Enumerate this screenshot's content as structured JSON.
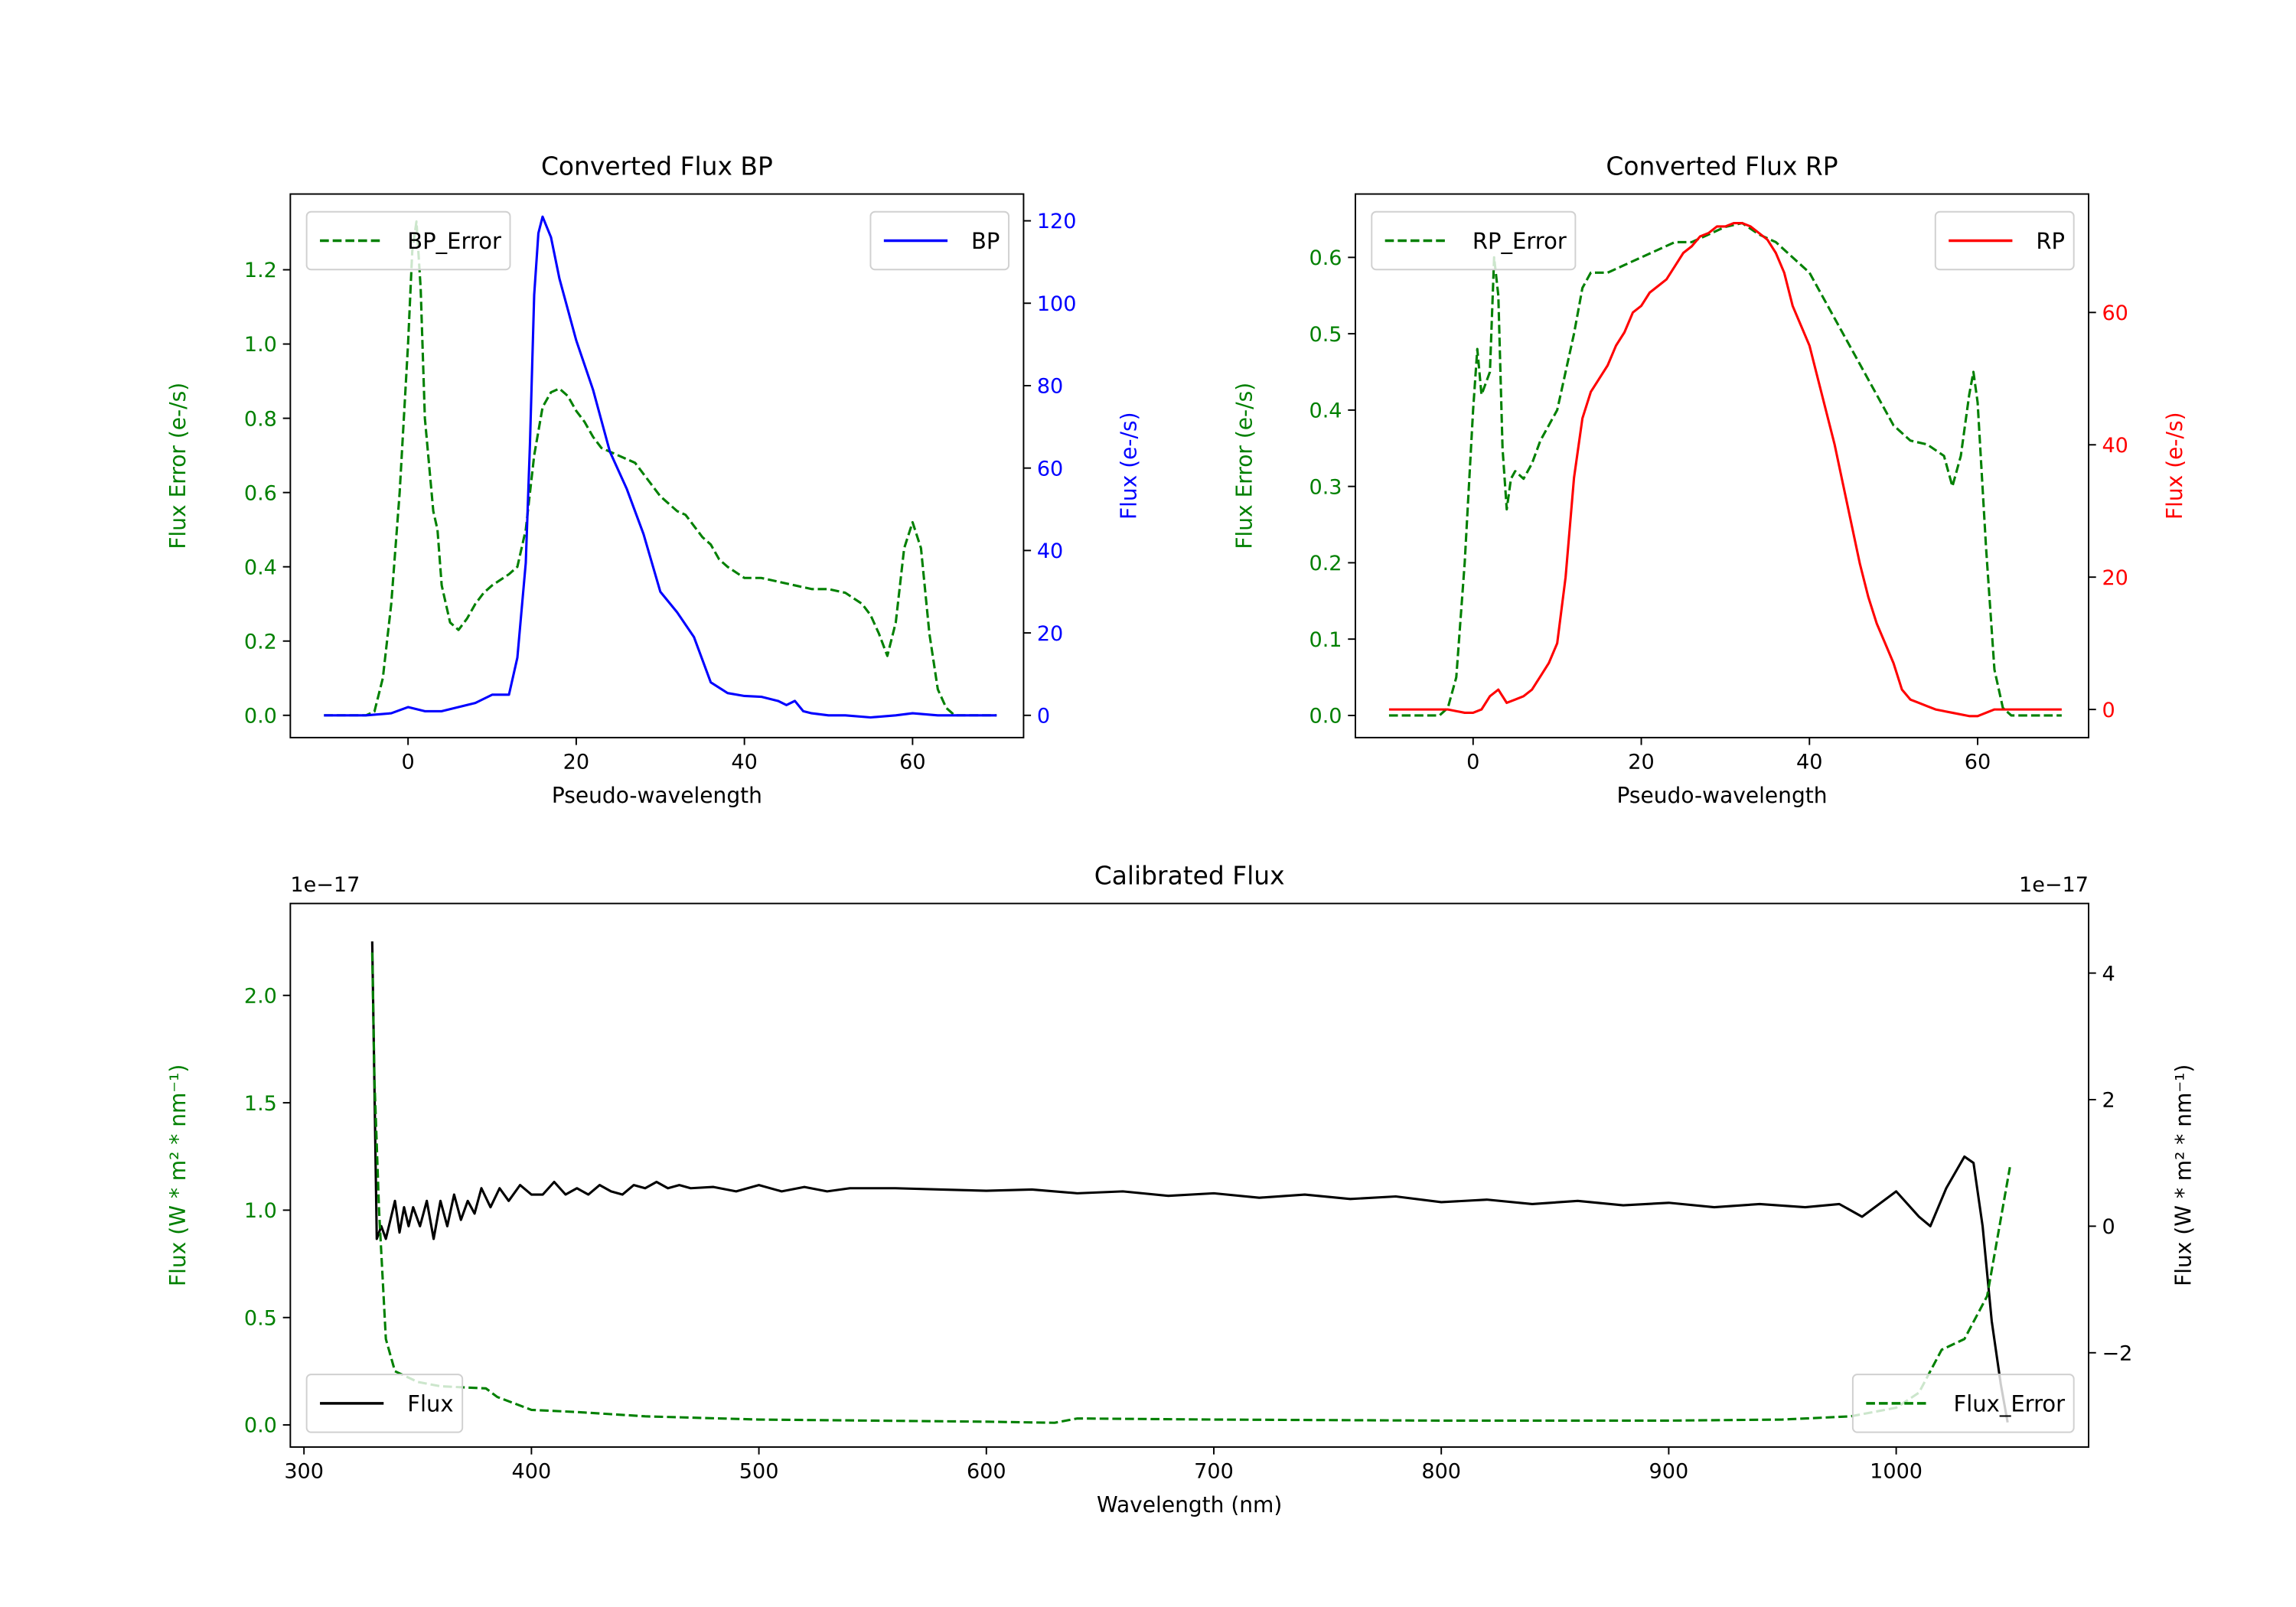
{
  "chart_data": [
    {
      "type": "line",
      "title": "Converted Flux BP",
      "xlabel": "Pseudo-wavelength",
      "ylabel_left": "Flux Error (e-/s)",
      "ylabel_right": "Flux (e-/s)",
      "left_color": "#008000",
      "right_color": "#0000ff",
      "xlim": [
        -14,
        73.2
      ],
      "ylim_left": [
        -0.06,
        1.404
      ],
      "ylim_right": [
        -5.4,
        126.5
      ],
      "xticks": [
        {
          "v": 0,
          "label": "0"
        },
        {
          "v": 20,
          "label": "20"
        },
        {
          "v": 40,
          "label": "40"
        },
        {
          "v": 60,
          "label": "60"
        }
      ],
      "yticks_left": [
        {
          "v": 0,
          "label": "0.0"
        },
        {
          "v": 0.2,
          "label": "0.2"
        },
        {
          "v": 0.4,
          "label": "0.4"
        },
        {
          "v": 0.6,
          "label": "0.6"
        },
        {
          "v": 0.8,
          "label": "0.8"
        },
        {
          "v": 1.0,
          "label": "1.0"
        },
        {
          "v": 1.2,
          "label": "1.2"
        }
      ],
      "yticks_right": [
        {
          "v": 0,
          "label": "0"
        },
        {
          "v": 20,
          "label": "20"
        },
        {
          "v": 40,
          "label": "40"
        },
        {
          "v": 60,
          "label": "60"
        },
        {
          "v": 80,
          "label": "80"
        },
        {
          "v": 100,
          "label": "100"
        },
        {
          "v": 120,
          "label": "120"
        }
      ],
      "offset_left": "",
      "offset_right": "",
      "series": [
        {
          "name": "BP_Error",
          "axis": "left",
          "color": "#008000",
          "style": "dashed",
          "legend": "upper left",
          "x": [
            -10,
            -5,
            -4,
            -3,
            -2,
            -1,
            0,
            0.5,
            1,
            1.5,
            2,
            3,
            3.5,
            4,
            5,
            6,
            7,
            8,
            9,
            10,
            12,
            13,
            14,
            15,
            16,
            17,
            18,
            19,
            20,
            21,
            22,
            23,
            24,
            25,
            26,
            27,
            28,
            29,
            30,
            31,
            32,
            33,
            34,
            35,
            36,
            37,
            38,
            40,
            42,
            44,
            46,
            48,
            50,
            52,
            54,
            55,
            56,
            57,
            58,
            59,
            60,
            61,
            62,
            63,
            64,
            65,
            70
          ],
          "y": [
            0,
            0,
            0.01,
            0.1,
            0.3,
            0.6,
            1.0,
            1.25,
            1.33,
            1.15,
            0.8,
            0.55,
            0.5,
            0.35,
            0.25,
            0.23,
            0.26,
            0.3,
            0.33,
            0.35,
            0.38,
            0.4,
            0.5,
            0.7,
            0.83,
            0.87,
            0.88,
            0.86,
            0.82,
            0.79,
            0.75,
            0.72,
            0.71,
            0.7,
            0.69,
            0.68,
            0.65,
            0.62,
            0.59,
            0.57,
            0.55,
            0.54,
            0.51,
            0.48,
            0.46,
            0.42,
            0.4,
            0.37,
            0.37,
            0.36,
            0.35,
            0.34,
            0.34,
            0.33,
            0.3,
            0.27,
            0.22,
            0.16,
            0.25,
            0.45,
            0.52,
            0.45,
            0.22,
            0.07,
            0.02,
            0,
            0
          ]
        },
        {
          "name": "BP",
          "axis": "right",
          "color": "#0000ff",
          "style": "solid",
          "legend": "upper right",
          "x": [
            -10,
            -5,
            -2,
            0,
            2,
            4,
            6,
            8,
            10,
            12,
            13,
            14,
            14.5,
            15,
            15.5,
            16,
            17,
            18,
            20,
            22,
            24,
            26,
            28,
            30,
            32,
            34,
            36,
            38,
            40,
            42,
            44,
            45,
            46,
            47,
            48,
            50,
            52,
            55,
            58,
            60,
            63,
            66,
            70
          ],
          "y": [
            0,
            0,
            0.5,
            2,
            1,
            1,
            2,
            3,
            5,
            5,
            14,
            37,
            66,
            102,
            117,
            121,
            116,
            106,
            91,
            79,
            64,
            55,
            44,
            30,
            25,
            19,
            8,
            5.4,
            4.7,
            4.5,
            3.5,
            2.5,
            3.5,
            1,
            0.5,
            0,
            0,
            -0.5,
            0,
            0.5,
            0,
            0,
            0
          ]
        }
      ]
    },
    {
      "type": "line",
      "title": "Converted Flux RP",
      "xlabel": "Pseudo-wavelength",
      "ylabel_left": "Flux Error (e-/s)",
      "ylabel_right": "Flux (e-/s)",
      "left_color": "#008000",
      "right_color": "#ff0000",
      "xlim": [
        -14,
        73.2
      ],
      "ylim_left": [
        -0.029,
        0.683
      ],
      "ylim_right": [
        -4.25,
        77.9
      ],
      "xticks": [
        {
          "v": 0,
          "label": "0"
        },
        {
          "v": 20,
          "label": "20"
        },
        {
          "v": 40,
          "label": "40"
        },
        {
          "v": 60,
          "label": "60"
        }
      ],
      "yticks_left": [
        {
          "v": 0,
          "label": "0.0"
        },
        {
          "v": 0.1,
          "label": "0.1"
        },
        {
          "v": 0.2,
          "label": "0.2"
        },
        {
          "v": 0.3,
          "label": "0.3"
        },
        {
          "v": 0.4,
          "label": "0.4"
        },
        {
          "v": 0.5,
          "label": "0.5"
        },
        {
          "v": 0.6,
          "label": "0.6"
        }
      ],
      "yticks_right": [
        {
          "v": 0,
          "label": "0"
        },
        {
          "v": 20,
          "label": "20"
        },
        {
          "v": 40,
          "label": "40"
        },
        {
          "v": 60,
          "label": "60"
        }
      ],
      "offset_left": "",
      "offset_right": "",
      "series": [
        {
          "name": "RP_Error",
          "axis": "left",
          "color": "#008000",
          "style": "dashed",
          "legend": "upper left",
          "x": [
            -10,
            -4,
            -3,
            -2,
            -1,
            0,
            0.5,
            1,
            2,
            2.5,
            3,
            3.5,
            4,
            4.5,
            5,
            6,
            7,
            8,
            10,
            12,
            13,
            14,
            16,
            18,
            20,
            22,
            24,
            26,
            28,
            30,
            32,
            34,
            36,
            38,
            40,
            42,
            44,
            46,
            48,
            50,
            52,
            54,
            56,
            57,
            58,
            59,
            59.5,
            60,
            61,
            62,
            63,
            64,
            70
          ],
          "y": [
            0,
            0,
            0.01,
            0.05,
            0.2,
            0.4,
            0.48,
            0.42,
            0.45,
            0.6,
            0.55,
            0.35,
            0.27,
            0.31,
            0.32,
            0.31,
            0.33,
            0.36,
            0.4,
            0.5,
            0.56,
            0.58,
            0.58,
            0.59,
            0.6,
            0.61,
            0.62,
            0.62,
            0.63,
            0.64,
            0.645,
            0.63,
            0.62,
            0.6,
            0.58,
            0.54,
            0.5,
            0.46,
            0.42,
            0.38,
            0.36,
            0.355,
            0.34,
            0.3,
            0.34,
            0.42,
            0.45,
            0.41,
            0.22,
            0.06,
            0.01,
            0,
            0
          ]
        },
        {
          "name": "RP",
          "axis": "right",
          "color": "#ff0000",
          "style": "solid",
          "legend": "upper right",
          "x": [
            -10,
            -3,
            -1,
            0,
            1,
            2,
            3,
            4,
            5,
            6,
            7,
            8,
            9,
            10,
            11,
            12,
            13,
            14,
            15,
            16,
            17,
            18,
            19,
            20,
            21,
            22,
            23,
            24,
            25,
            26,
            27,
            28,
            29,
            30,
            31,
            32,
            33,
            34,
            35,
            36,
            37,
            38,
            39,
            40,
            41,
            42,
            43,
            44,
            45,
            46,
            47,
            48,
            49,
            50,
            51,
            52,
            53,
            54,
            55,
            57,
            59,
            60,
            62,
            65,
            70
          ],
          "y": [
            0,
            0,
            -0.5,
            -0.5,
            0,
            2,
            3,
            1,
            1.5,
            2,
            3,
            5,
            7,
            10,
            20,
            35,
            44,
            48,
            50,
            52,
            55,
            57,
            60,
            61,
            63,
            64,
            65,
            67,
            69,
            70,
            71.5,
            72,
            73,
            73,
            73.5,
            73.5,
            73,
            72,
            71,
            69,
            66,
            61,
            58,
            55,
            50,
            45,
            40,
            34,
            28,
            22,
            17,
            13,
            10,
            7,
            3,
            1.5,
            1,
            0.5,
            0,
            -0.5,
            -1,
            -1,
            0,
            0,
            0
          ]
        }
      ]
    },
    {
      "type": "line",
      "title": "Calibrated Flux",
      "xlabel": "Wavelength (nm)",
      "ylabel_left": "Flux (W * m² * nm⁻¹)",
      "ylabel_right": "Flux (W * m² * nm⁻¹)",
      "left_color": "#008000",
      "right_color": "#000000",
      "xlim": [
        294,
        1084.6
      ],
      "ylim_left": [
        -0.103,
        2.428
      ],
      "ylim_right": [
        -3.49,
        5.1
      ],
      "xticks": [
        {
          "v": 300,
          "label": "300"
        },
        {
          "v": 400,
          "label": "400"
        },
        {
          "v": 500,
          "label": "500"
        },
        {
          "v": 600,
          "label": "600"
        },
        {
          "v": 700,
          "label": "700"
        },
        {
          "v": 800,
          "label": "800"
        },
        {
          "v": 900,
          "label": "900"
        },
        {
          "v": 1000,
          "label": "1000"
        }
      ],
      "yticks_left": [
        {
          "v": 0,
          "label": "0.0"
        },
        {
          "v": 0.5,
          "label": "0.5"
        },
        {
          "v": 1.0,
          "label": "1.0"
        },
        {
          "v": 1.5,
          "label": "1.5"
        },
        {
          "v": 2.0,
          "label": "2.0"
        }
      ],
      "yticks_right": [
        {
          "v": -2,
          "label": "−2"
        },
        {
          "v": 0,
          "label": "0"
        },
        {
          "v": 2,
          "label": "2"
        },
        {
          "v": 4,
          "label": "4"
        }
      ],
      "offset_left": "1e−17",
      "offset_right": "1e−17",
      "series": [
        {
          "name": "Flux",
          "axis": "right",
          "color": "#000000",
          "style": "solid",
          "legend": "lower left",
          "x": [
            330,
            332,
            334,
            336,
            338,
            340,
            342,
            344,
            346,
            348,
            351,
            354,
            357,
            360,
            363,
            366,
            369,
            372,
            375,
            378,
            382,
            386,
            390,
            395,
            400,
            405,
            410,
            415,
            420,
            425,
            430,
            435,
            440,
            445,
            450,
            455,
            460,
            465,
            470,
            480,
            490,
            500,
            510,
            520,
            530,
            540,
            560,
            580,
            600,
            620,
            640,
            660,
            680,
            700,
            720,
            740,
            760,
            780,
            800,
            820,
            840,
            860,
            880,
            900,
            920,
            940,
            960,
            975,
            985,
            1000,
            1010,
            1015,
            1022,
            1030,
            1034,
            1038,
            1042,
            1046,
            1049
          ],
          "y": [
            4.5,
            -0.2,
            0.0,
            -0.2,
            0.1,
            0.4,
            -0.1,
            0.3,
            0.0,
            0.3,
            0.0,
            0.4,
            -0.2,
            0.4,
            0.0,
            0.5,
            0.1,
            0.4,
            0.2,
            0.6,
            0.3,
            0.6,
            0.4,
            0.65,
            0.5,
            0.5,
            0.7,
            0.5,
            0.6,
            0.5,
            0.65,
            0.55,
            0.5,
            0.65,
            0.6,
            0.7,
            0.6,
            0.65,
            0.6,
            0.62,
            0.55,
            0.65,
            0.55,
            0.62,
            0.55,
            0.6,
            0.6,
            0.58,
            0.56,
            0.58,
            0.52,
            0.55,
            0.48,
            0.52,
            0.45,
            0.5,
            0.43,
            0.47,
            0.38,
            0.42,
            0.35,
            0.4,
            0.33,
            0.37,
            0.3,
            0.35,
            0.3,
            0.35,
            0.15,
            0.55,
            0.15,
            0.0,
            0.6,
            1.1,
            1.0,
            0.0,
            -1.5,
            -2.5,
            -3.1
          ]
        },
        {
          "name": "Flux_Error",
          "axis": "left",
          "color": "#008000",
          "style": "dashed",
          "legend": "lower right",
          "x": [
            330,
            331,
            333,
            336,
            340,
            350,
            360,
            380,
            385,
            400,
            420,
            450,
            500,
            600,
            630,
            640,
            700,
            800,
            900,
            950,
            980,
            1000,
            1010,
            1020,
            1030,
            1040,
            1045,
            1050
          ],
          "y": [
            2.2,
            1.6,
            1.0,
            0.4,
            0.25,
            0.2,
            0.18,
            0.17,
            0.13,
            0.07,
            0.06,
            0.04,
            0.025,
            0.015,
            0.01,
            0.03,
            0.025,
            0.02,
            0.02,
            0.025,
            0.04,
            0.08,
            0.15,
            0.35,
            0.4,
            0.6,
            0.9,
            1.2
          ]
        }
      ]
    }
  ]
}
